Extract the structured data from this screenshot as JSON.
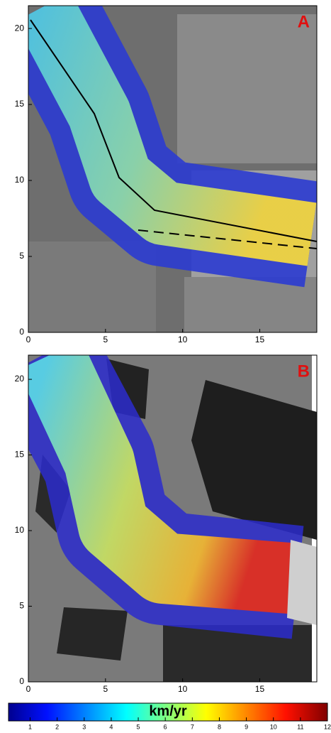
{
  "panels": [
    {
      "label": "A",
      "xlim": [
        0,
        18.7
      ],
      "ylim": [
        0,
        21.5
      ],
      "xticks": [
        0,
        5,
        10,
        15
      ],
      "yticks": [
        0,
        5,
        10,
        15,
        20
      ]
    },
    {
      "label": "B",
      "xlim": [
        0,
        18.7
      ],
      "ylim": [
        0,
        21.6
      ],
      "xticks": [
        0,
        5,
        10,
        15
      ],
      "yticks": [
        0,
        5,
        10,
        15,
        20
      ]
    }
  ],
  "colorbar": {
    "label": "km/yr",
    "range": [
      0.2,
      12
    ],
    "ticks": [
      1,
      2,
      3,
      4,
      5,
      6,
      7,
      8,
      9,
      10,
      11,
      12
    ]
  }
}
